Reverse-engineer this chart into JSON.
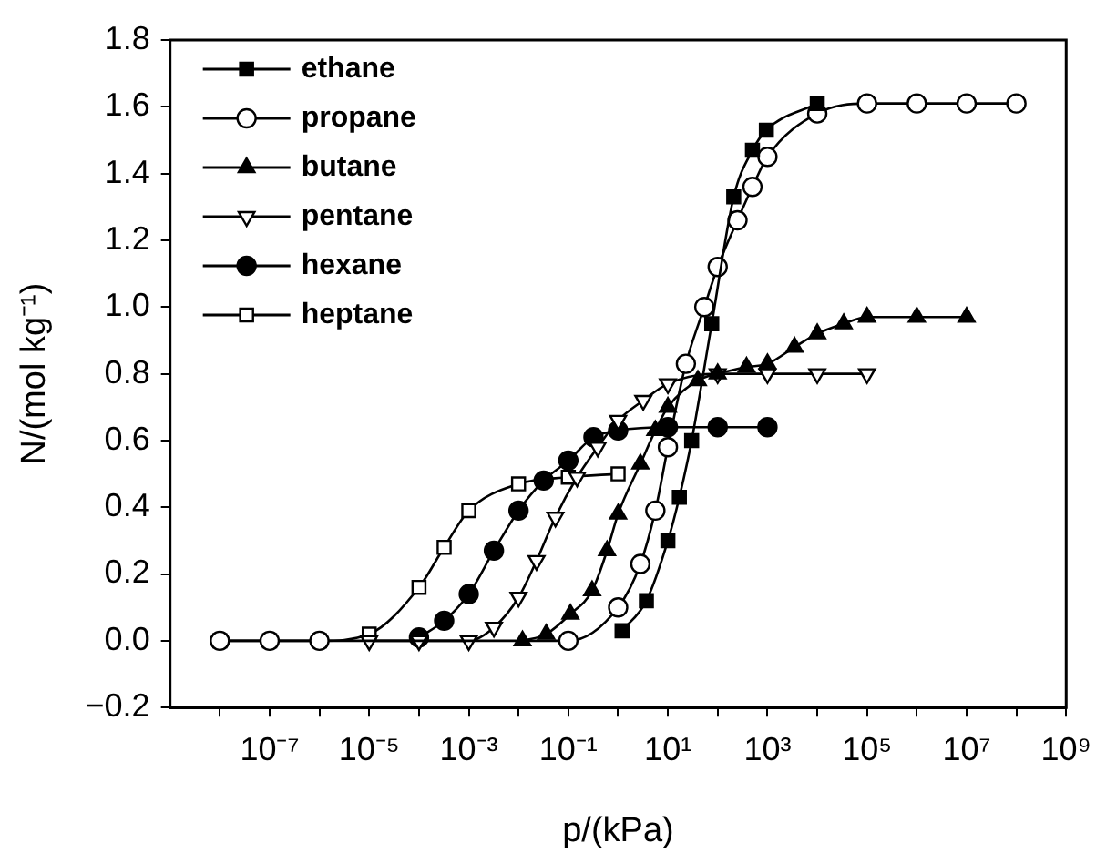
{
  "chart_data": {
    "type": "line",
    "xlabel": "p/(kPa)",
    "ylabel": "N/(mol kg⁻¹)",
    "log": "x",
    "xlim": [
      1e-09,
      1000000000.0
    ],
    "ylim": [
      -0.2,
      1.8
    ],
    "xticks": [
      {
        "value": 1e-08,
        "label": null
      },
      {
        "value": 1e-07,
        "label": "10⁻⁷"
      },
      {
        "value": 1e-06,
        "label": null
      },
      {
        "value": 1e-05,
        "label": "10⁻⁵"
      },
      {
        "value": 0.0001,
        "label": null
      },
      {
        "value": 0.001,
        "label": "10⁻³"
      },
      {
        "value": 0.01,
        "label": null
      },
      {
        "value": 0.1,
        "label": "10⁻¹"
      },
      {
        "value": 1,
        "label": null
      },
      {
        "value": 10,
        "label": "10¹"
      },
      {
        "value": 100,
        "label": null
      },
      {
        "value": 1000,
        "label": "10³"
      },
      {
        "value": 10000.0,
        "label": null
      },
      {
        "value": 100000.0,
        "label": "10⁵"
      },
      {
        "value": 1000000.0,
        "label": null
      },
      {
        "value": 10000000.0,
        "label": "10⁷"
      },
      {
        "value": 100000000.0,
        "label": null
      },
      {
        "value": 1000000000.0,
        "label": "10⁹"
      }
    ],
    "yticks": [
      {
        "value": -0.2,
        "label": "−0.2"
      },
      {
        "value": 0,
        "label": "0.0"
      },
      {
        "value": 0.2,
        "label": "0.2"
      },
      {
        "value": 0.4,
        "label": "0.4"
      },
      {
        "value": 0.6,
        "label": "0.6"
      },
      {
        "value": 0.8,
        "label": "0.8"
      },
      {
        "value": 1,
        "label": "1.0"
      },
      {
        "value": 1.2,
        "label": "1.2"
      },
      {
        "value": 1.4,
        "label": "1.4"
      },
      {
        "value": 1.6,
        "label": "1.6"
      },
      {
        "value": 1.8,
        "label": "1.8"
      }
    ],
    "grid": false,
    "legend": "top left",
    "line_style": "solid",
    "series": [
      {
        "name": "ethane",
        "color": "#000000",
        "marker": "square",
        "x": [
          1.2,
          3.7,
          10,
          17,
          30,
          76,
          210,
          500,
          950,
          10000
        ],
        "values": [
          0.03,
          0.12,
          0.3,
          0.43,
          0.6,
          0.95,
          1.33,
          1.47,
          1.53,
          1.61
        ]
      },
      {
        "name": "propane",
        "color": "#000000",
        "marker": "circle",
        "x": [
          1e-08,
          1e-07,
          1e-06,
          0.1,
          1,
          2.8,
          5.6,
          10,
          23,
          54,
          100,
          250,
          500,
          1000,
          10000,
          100000,
          1000000,
          10000000,
          100000000
        ],
        "values": [
          0,
          0,
          0,
          0,
          0.1,
          0.23,
          0.39,
          0.58,
          0.83,
          1,
          1.12,
          1.26,
          1.36,
          1.45,
          1.58,
          1.61,
          1.61,
          1.61,
          1.61
        ]
      },
      {
        "name": "butane",
        "color": "#000000",
        "marker": "triangle",
        "x": [
          0.012,
          0.036,
          0.11,
          0.3,
          0.6,
          1,
          2.8,
          5.6,
          10,
          40,
          100,
          380,
          1000,
          3500,
          10000,
          34000,
          100000,
          1000000,
          10000000
        ],
        "values": [
          0,
          0.02,
          0.08,
          0.15,
          0.27,
          0.38,
          0.53,
          0.63,
          0.7,
          0.78,
          0.8,
          0.82,
          0.83,
          0.88,
          0.92,
          0.95,
          0.97,
          0.97,
          0.97
        ]
      },
      {
        "name": "pentane",
        "color": "#000000",
        "marker": "triangle",
        "x": [
          1e-05,
          0.0001,
          0.001,
          0.0032,
          0.01,
          0.023,
          0.055,
          0.15,
          0.39,
          1,
          3.2,
          10,
          100,
          1000,
          10000,
          100000
        ],
        "values": [
          0,
          0,
          0,
          0.04,
          0.13,
          0.24,
          0.37,
          0.49,
          0.58,
          0.66,
          0.72,
          0.77,
          0.8,
          0.8,
          0.8,
          0.8
        ]
      },
      {
        "name": "hexane",
        "color": "#000000",
        "marker": "circle",
        "x": [
          0.0001,
          0.00032,
          0.001,
          0.0032,
          0.01,
          0.032,
          0.1,
          0.32,
          1,
          10,
          100,
          1000
        ],
        "values": [
          0.01,
          0.06,
          0.14,
          0.27,
          0.39,
          0.48,
          0.54,
          0.61,
          0.63,
          0.64,
          0.64,
          0.64
        ]
      },
      {
        "name": "heptane",
        "color": "#000000",
        "marker": "square",
        "x": [
          1e-08,
          1e-07,
          1e-06,
          1e-05,
          0.0001,
          0.00032,
          0.001,
          0.01,
          0.1,
          1
        ],
        "values": [
          0,
          0,
          0,
          0.02,
          0.16,
          0.28,
          0.39,
          0.47,
          0.49,
          0.5
        ]
      }
    ]
  }
}
